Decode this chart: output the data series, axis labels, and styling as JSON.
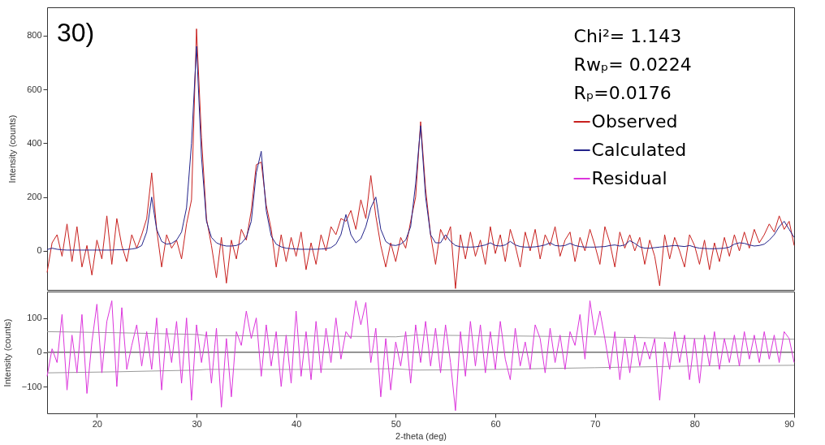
{
  "chart_data": [
    {
      "type": "line",
      "ylabel": "Intensity (counts)",
      "xlim": [
        15,
        90
      ],
      "ylim": [
        -145,
        905
      ],
      "yticks": [
        0,
        200,
        400,
        600,
        800
      ],
      "grid": false,
      "tick_labels": "y",
      "legend": "top right",
      "annotations": [
        "30)",
        "Chi²= 1.143",
        "Rwₚ= 0.0224",
        "Rₚ=0.0176"
      ],
      "x": [
        15,
        15.5,
        16,
        16.5,
        17,
        17.5,
        18,
        18.5,
        19,
        19.5,
        20,
        20.5,
        21,
        21.5,
        22,
        22.5,
        23,
        23.5,
        24,
        24.5,
        25,
        25.5,
        26,
        26.5,
        27,
        27.5,
        28,
        28.5,
        29,
        29.5,
        30,
        30.5,
        31,
        31.5,
        32,
        32.5,
        33,
        33.5,
        34,
        34.5,
        35,
        35.5,
        36,
        36.5,
        37,
        37.5,
        38,
        38.5,
        39,
        39.5,
        40,
        40.5,
        41,
        41.5,
        42,
        42.5,
        43,
        43.5,
        44,
        44.5,
        45,
        45.5,
        46,
        46.5,
        47,
        47.5,
        48,
        48.5,
        49,
        49.5,
        50,
        50.5,
        51,
        51.5,
        52,
        52.5,
        53,
        53.5,
        54,
        54.5,
        55,
        55.5,
        56,
        56.5,
        57,
        57.5,
        58,
        58.5,
        59,
        59.5,
        60,
        60.5,
        61,
        61.5,
        62,
        62.5,
        63,
        63.5,
        64,
        64.5,
        65,
        65.5,
        66,
        66.5,
        67,
        67.5,
        68,
        68.5,
        69,
        69.5,
        70,
        70.5,
        71,
        71.5,
        72,
        72.5,
        73,
        73.5,
        74,
        74.5,
        75,
        75.5,
        76,
        76.5,
        77,
        77.5,
        78,
        78.5,
        79,
        79.5,
        80,
        80.5,
        81,
        81.5,
        82,
        82.5,
        83,
        83.5,
        84,
        84.5,
        85,
        85.5,
        86,
        86.5,
        87,
        87.5,
        88,
        88.5,
        89,
        89.5,
        90
      ],
      "series": [
        {
          "name": "Observed",
          "color": "#c8201e",
          "values": [
            -80,
            30,
            60,
            -20,
            100,
            -40,
            90,
            -60,
            20,
            -90,
            40,
            -30,
            130,
            -50,
            120,
            20,
            -40,
            60,
            10,
            60,
            120,
            290,
            80,
            -60,
            60,
            10,
            40,
            -30,
            100,
            190,
            825,
            420,
            120,
            20,
            -100,
            50,
            -120,
            40,
            -30,
            80,
            40,
            150,
            320,
            330,
            170,
            80,
            -60,
            60,
            -40,
            50,
            -20,
            70,
            -70,
            30,
            -50,
            60,
            0,
            90,
            60,
            120,
            110,
            150,
            80,
            190,
            120,
            280,
            130,
            20,
            -60,
            30,
            -40,
            50,
            10,
            110,
            200,
            480,
            230,
            60,
            -50,
            80,
            40,
            90,
            -140,
            60,
            -30,
            70,
            -20,
            40,
            -50,
            90,
            -10,
            60,
            -40,
            80,
            20,
            -60,
            70,
            0,
            80,
            -30,
            60,
            20,
            90,
            -20,
            40,
            70,
            -40,
            50,
            0,
            80,
            20,
            -50,
            90,
            30,
            -60,
            70,
            10,
            60,
            0,
            50,
            -50,
            40,
            -20,
            -130,
            60,
            -30,
            50,
            0,
            -60,
            60,
            20,
            -50,
            40,
            -70,
            30,
            -40,
            50,
            -20,
            60,
            0,
            70,
            10,
            80,
            30,
            60,
            100,
            70,
            130,
            80,
            110,
            20
          ]
        },
        {
          "name": "Calculated",
          "color": "#23238a",
          "values": [
            5,
            10,
            6,
            4,
            3,
            3,
            3,
            3,
            3,
            3,
            3,
            3,
            3,
            3,
            4,
            4,
            5,
            7,
            10,
            20,
            70,
            200,
            80,
            35,
            25,
            28,
            40,
            70,
            160,
            400,
            760,
            350,
            110,
            50,
            30,
            22,
            18,
            18,
            20,
            28,
            50,
            110,
            290,
            370,
            150,
            55,
            25,
            15,
            10,
            8,
            7,
            6,
            6,
            6,
            6,
            7,
            8,
            12,
            25,
            60,
            135,
            60,
            30,
            45,
            90,
            160,
            200,
            80,
            35,
            22,
            20,
            25,
            40,
            90,
            250,
            465,
            200,
            60,
            30,
            30,
            60,
            35,
            20,
            15,
            14,
            14,
            15,
            18,
            22,
            30,
            20,
            18,
            22,
            35,
            22,
            16,
            14,
            14,
            15,
            18,
            22,
            30,
            20,
            18,
            20,
            28,
            20,
            16,
            14,
            14,
            14,
            15,
            16,
            20,
            22,
            18,
            22,
            38,
            28,
            15,
            10,
            10,
            12,
            14,
            16,
            18,
            20,
            18,
            16,
            20,
            14,
            10,
            9,
            8,
            8,
            9,
            10,
            14,
            25,
            30,
            28,
            22,
            18,
            20,
            25,
            40,
            60,
            90,
            110,
            80,
            50
          ]
        }
      ]
    },
    {
      "type": "line",
      "xlabel": "2-theta (deg)",
      "ylabel": "Intensity (counts)",
      "xlim": [
        15,
        90
      ],
      "xticks": [
        20,
        30,
        40,
        50,
        60,
        70,
        80,
        90
      ],
      "ylim": [
        -178,
        177
      ],
      "yticks": [
        -100,
        0,
        100
      ],
      "grid": false,
      "ref_lines": [
        {
          "axis": "y",
          "value": 0,
          "color": "#707070"
        }
      ],
      "x": [
        15,
        15.5,
        16,
        16.5,
        17,
        17.5,
        18,
        18.5,
        19,
        19.5,
        20,
        20.5,
        21,
        21.5,
        22,
        22.5,
        23,
        23.5,
        24,
        24.5,
        25,
        25.5,
        26,
        26.5,
        27,
        27.5,
        28,
        28.5,
        29,
        29.5,
        30,
        30.5,
        31,
        31.5,
        32,
        32.5,
        33,
        33.5,
        34,
        34.5,
        35,
        35.5,
        36,
        36.5,
        37,
        37.5,
        38,
        38.5,
        39,
        39.5,
        40,
        40.5,
        41,
        41.5,
        42,
        42.5,
        43,
        43.5,
        44,
        44.5,
        45,
        45.5,
        46,
        46.5,
        47,
        47.5,
        48,
        48.5,
        49,
        49.5,
        50,
        50.5,
        51,
        51.5,
        52,
        52.5,
        53,
        53.5,
        54,
        54.5,
        55,
        55.5,
        56,
        56.5,
        57,
        57.5,
        58,
        58.5,
        59,
        59.5,
        60,
        60.5,
        61,
        61.5,
        62,
        62.5,
        63,
        63.5,
        64,
        64.5,
        65,
        65.5,
        66,
        66.5,
        67,
        67.5,
        68,
        68.5,
        69,
        69.5,
        70,
        70.5,
        71,
        71.5,
        72,
        72.5,
        73,
        73.5,
        74,
        74.5,
        75,
        75.5,
        76,
        76.5,
        77,
        77.5,
        78,
        78.5,
        79,
        79.5,
        80,
        80.5,
        81,
        81.5,
        82,
        82.5,
        83,
        83.5,
        84,
        84.5,
        85,
        85.5,
        86,
        86.5,
        87,
        87.5,
        88,
        88.5,
        89,
        89.5,
        90
      ],
      "series": [
        {
          "color": "#9a9a9a",
          "x": [
            15,
            22,
            30,
            31,
            40,
            50,
            52,
            60,
            70,
            80,
            90
          ],
          "values": [
            60,
            57,
            52,
            48,
            48,
            45,
            50,
            48,
            45,
            40,
            38
          ]
        },
        {
          "color": "#9a9a9a",
          "x": [
            15,
            22,
            30,
            31,
            40,
            50,
            52,
            60,
            70,
            80,
            90
          ],
          "values": [
            -60,
            -57,
            -52,
            -50,
            -50,
            -48,
            -52,
            -50,
            -45,
            -40,
            -38
          ]
        },
        {
          "name": "Residual",
          "color": "#dc35dc",
          "values": [
            -70,
            10,
            -30,
            110,
            -110,
            50,
            -60,
            110,
            -120,
            30,
            140,
            -60,
            90,
            150,
            -100,
            130,
            -50,
            20,
            80,
            -40,
            60,
            -50,
            100,
            -110,
            70,
            -30,
            90,
            -90,
            100,
            -140,
            80,
            -30,
            60,
            -90,
            70,
            -160,
            40,
            -130,
            60,
            20,
            120,
            40,
            100,
            -70,
            80,
            -40,
            60,
            -100,
            50,
            -90,
            120,
            -70,
            60,
            -80,
            90,
            -60,
            70,
            -30,
            100,
            -20,
            60,
            40,
            150,
            80,
            145,
            -30,
            70,
            -130,
            40,
            -110,
            30,
            -40,
            60,
            -90,
            80,
            -30,
            90,
            -40,
            70,
            -60,
            80,
            -30,
            -170,
            60,
            -70,
            90,
            -40,
            80,
            -60,
            60,
            -50,
            90,
            -20,
            -80,
            70,
            -40,
            30,
            -50,
            80,
            40,
            -60,
            70,
            -30,
            50,
            -50,
            60,
            20,
            110,
            -20,
            150,
            50,
            120,
            40,
            -50,
            60,
            -80,
            40,
            -60,
            50,
            -40,
            30,
            -20,
            40,
            -140,
            30,
            -50,
            60,
            -30,
            50,
            -80,
            40,
            -90,
            50,
            -40,
            60,
            -50,
            40,
            -30,
            50,
            -40,
            60,
            -20,
            50,
            -30,
            60,
            -20,
            50,
            -30,
            60,
            40,
            -30
          ]
        }
      ]
    }
  ]
}
